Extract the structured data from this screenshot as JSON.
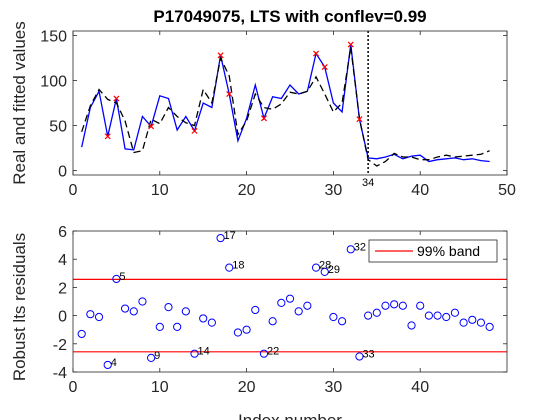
{
  "colors": {
    "real": "#0000ff",
    "fitted": "#000000",
    "outlier_marker": "#ff0000",
    "band": "#ff0000",
    "residual_marker": "#0000ff",
    "vline": "#000000"
  },
  "chart_data": [
    {
      "type": "line",
      "title": "P17049075, LTS with conflev=0.99",
      "xlabel": "",
      "ylabel": "Real and fitted values",
      "xlim": [
        0,
        50
      ],
      "ylim": [
        -5,
        155
      ],
      "xticks": [
        "0",
        "10",
        "20",
        "30",
        "40",
        "50"
      ],
      "yticks": [
        "0",
        "50",
        "100",
        "150"
      ],
      "x": [
        1,
        2,
        3,
        4,
        5,
        6,
        7,
        8,
        9,
        10,
        11,
        12,
        13,
        14,
        15,
        16,
        17,
        18,
        19,
        20,
        21,
        22,
        23,
        24,
        25,
        26,
        27,
        28,
        29,
        30,
        31,
        32,
        33,
        34,
        35,
        36,
        37,
        38,
        39,
        40,
        41,
        42,
        43,
        44,
        45,
        46,
        47,
        48
      ],
      "series": [
        {
          "style": "solid-blue",
          "values": [
            26,
            70,
            88,
            38,
            80,
            24,
            23,
            60,
            49,
            83,
            80,
            45,
            60,
            44,
            75,
            70,
            128,
            85,
            33,
            58,
            95,
            58,
            82,
            80,
            95,
            85,
            88,
            130,
            115,
            75,
            65,
            140,
            57,
            14,
            13,
            15,
            18,
            13,
            16,
            17,
            10,
            12,
            13,
            14,
            12,
            13,
            11,
            10
          ]
        },
        {
          "style": "dashed-black",
          "values": [
            43,
            72,
            90,
            79,
            75,
            55,
            20,
            22,
            57,
            52,
            70,
            60,
            53,
            50,
            90,
            75,
            125,
            105,
            40,
            55,
            85,
            70,
            68,
            74,
            87,
            85,
            88,
            104,
            85,
            65,
            75,
            137,
            58,
            12,
            5,
            10,
            19,
            15,
            15,
            12,
            12,
            15,
            17,
            15,
            16,
            17,
            18,
            22
          ]
        }
      ],
      "outliers_x": [
        4,
        5,
        9,
        14,
        17,
        18,
        22,
        28,
        29,
        32,
        33
      ],
      "vline_x": 34,
      "vline_label": "34"
    },
    {
      "type": "scatter",
      "title": "",
      "xlabel": "Index number",
      "ylabel": "Robust lts residuals",
      "xlim": [
        0,
        50
      ],
      "ylim": [
        -4,
        6
      ],
      "xticks": [
        "0",
        "10",
        "20",
        "30",
        "40"
      ],
      "yticks": [
        "-4",
        "-2",
        "0",
        "2",
        "4",
        "6"
      ],
      "band": 2.57,
      "band_legend": "99% band",
      "x": [
        1,
        2,
        3,
        4,
        5,
        6,
        7,
        8,
        9,
        10,
        11,
        12,
        13,
        14,
        15,
        16,
        17,
        18,
        19,
        20,
        21,
        22,
        23,
        24,
        25,
        26,
        27,
        28,
        29,
        30,
        31,
        32,
        33,
        34,
        35,
        36,
        37,
        38,
        39,
        40,
        41,
        42,
        43,
        44,
        45,
        46,
        47,
        48
      ],
      "values": [
        -1.3,
        0.1,
        -0.1,
        -3.5,
        2.6,
        0.5,
        0.3,
        1.0,
        -3.0,
        -0.8,
        0.6,
        -0.8,
        0.3,
        -2.7,
        -0.2,
        -0.5,
        5.5,
        3.4,
        -1.2,
        -1.0,
        0.4,
        -2.7,
        -0.4,
        0.9,
        1.2,
        0.3,
        0.7,
        3.4,
        3.1,
        -0.1,
        -0.4,
        4.7,
        -2.9,
        0.0,
        0.2,
        0.7,
        0.8,
        0.7,
        -0.7,
        0.7,
        0.0,
        0.0,
        -0.1,
        0.2,
        -0.5,
        -0.3,
        -0.5,
        -0.8
      ],
      "labeled_points": [
        {
          "x": 4,
          "label": "4"
        },
        {
          "x": 5,
          "label": "5"
        },
        {
          "x": 9,
          "label": "9"
        },
        {
          "x": 14,
          "label": "14"
        },
        {
          "x": 17,
          "label": "17"
        },
        {
          "x": 18,
          "label": "18"
        },
        {
          "x": 22,
          "label": "22"
        },
        {
          "x": 28,
          "label": "28"
        },
        {
          "x": 29,
          "label": "29"
        },
        {
          "x": 32,
          "label": "32"
        },
        {
          "x": 33,
          "label": "33"
        }
      ]
    }
  ]
}
